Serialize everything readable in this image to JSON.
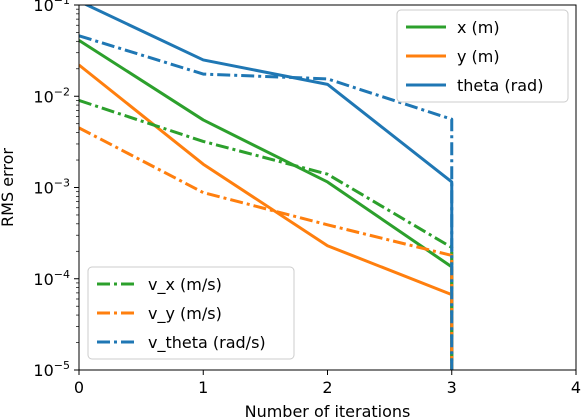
{
  "chart_data": {
    "type": "line",
    "xlabel": "Number of iterations",
    "ylabel": "RMS error",
    "xlim": [
      0,
      4
    ],
    "ylim": [
      1e-05,
      0.1
    ],
    "y_scale": "log",
    "x_ticks": [
      {
        "value": 0,
        "label": "0"
      },
      {
        "value": 1,
        "label": "1"
      },
      {
        "value": 2,
        "label": "2"
      },
      {
        "value": 3,
        "label": "3"
      },
      {
        "value": 4,
        "label": "4"
      }
    ],
    "y_ticks": [
      {
        "value": 1e-05,
        "base": "10",
        "exp": "−5"
      },
      {
        "value": 0.0001,
        "base": "10",
        "exp": "−4"
      },
      {
        "value": 0.001,
        "base": "10",
        "exp": "−3"
      },
      {
        "value": 0.01,
        "base": "10",
        "exp": "−2"
      },
      {
        "value": 0.1,
        "base": "10",
        "exp": "−1"
      }
    ],
    "grid": false,
    "legends": [
      {
        "placement": "top-right",
        "entries": [
          "x (m)",
          "y (m)",
          "theta (rad)"
        ]
      },
      {
        "placement": "bottom-left",
        "entries": [
          "v_x (m/s)",
          "v_y (m/s)",
          "v_theta (rad/s)"
        ]
      }
    ],
    "series": [
      {
        "name": "x (m)",
        "color": "#2ca02c",
        "style": "solid",
        "x": [
          0,
          1,
          2,
          3,
          3
        ],
        "y": [
          0.041,
          0.0055,
          0.00115,
          0.000135,
          1e-05
        ]
      },
      {
        "name": "y (m)",
        "color": "#ff7f0e",
        "style": "solid",
        "x": [
          0,
          1,
          2,
          3,
          3
        ],
        "y": [
          0.022,
          0.0018,
          0.00023,
          6.7e-05,
          1e-05
        ]
      },
      {
        "name": "theta (rad)",
        "color": "#1f77b4",
        "style": "solid",
        "x": [
          0,
          1,
          2,
          3,
          3
        ],
        "y": [
          0.11,
          0.025,
          0.0135,
          0.00115,
          1e-05
        ]
      },
      {
        "name": "v_x (m/s)",
        "color": "#2ca02c",
        "style": "dashdot",
        "x": [
          0,
          1,
          2,
          3,
          3
        ],
        "y": [
          0.009,
          0.0032,
          0.0014,
          0.00022,
          1e-05
        ]
      },
      {
        "name": "v_y (m/s)",
        "color": "#ff7f0e",
        "style": "dashdot",
        "x": [
          0,
          1,
          2,
          3,
          3
        ],
        "y": [
          0.0045,
          0.00088,
          0.00039,
          0.00018,
          1e-05
        ]
      },
      {
        "name": "v_theta (rad/s)",
        "color": "#1f77b4",
        "style": "dashdot",
        "x": [
          0,
          1,
          2,
          3,
          3
        ],
        "y": [
          0.046,
          0.0175,
          0.0155,
          0.0056,
          1e-05
        ]
      }
    ]
  }
}
